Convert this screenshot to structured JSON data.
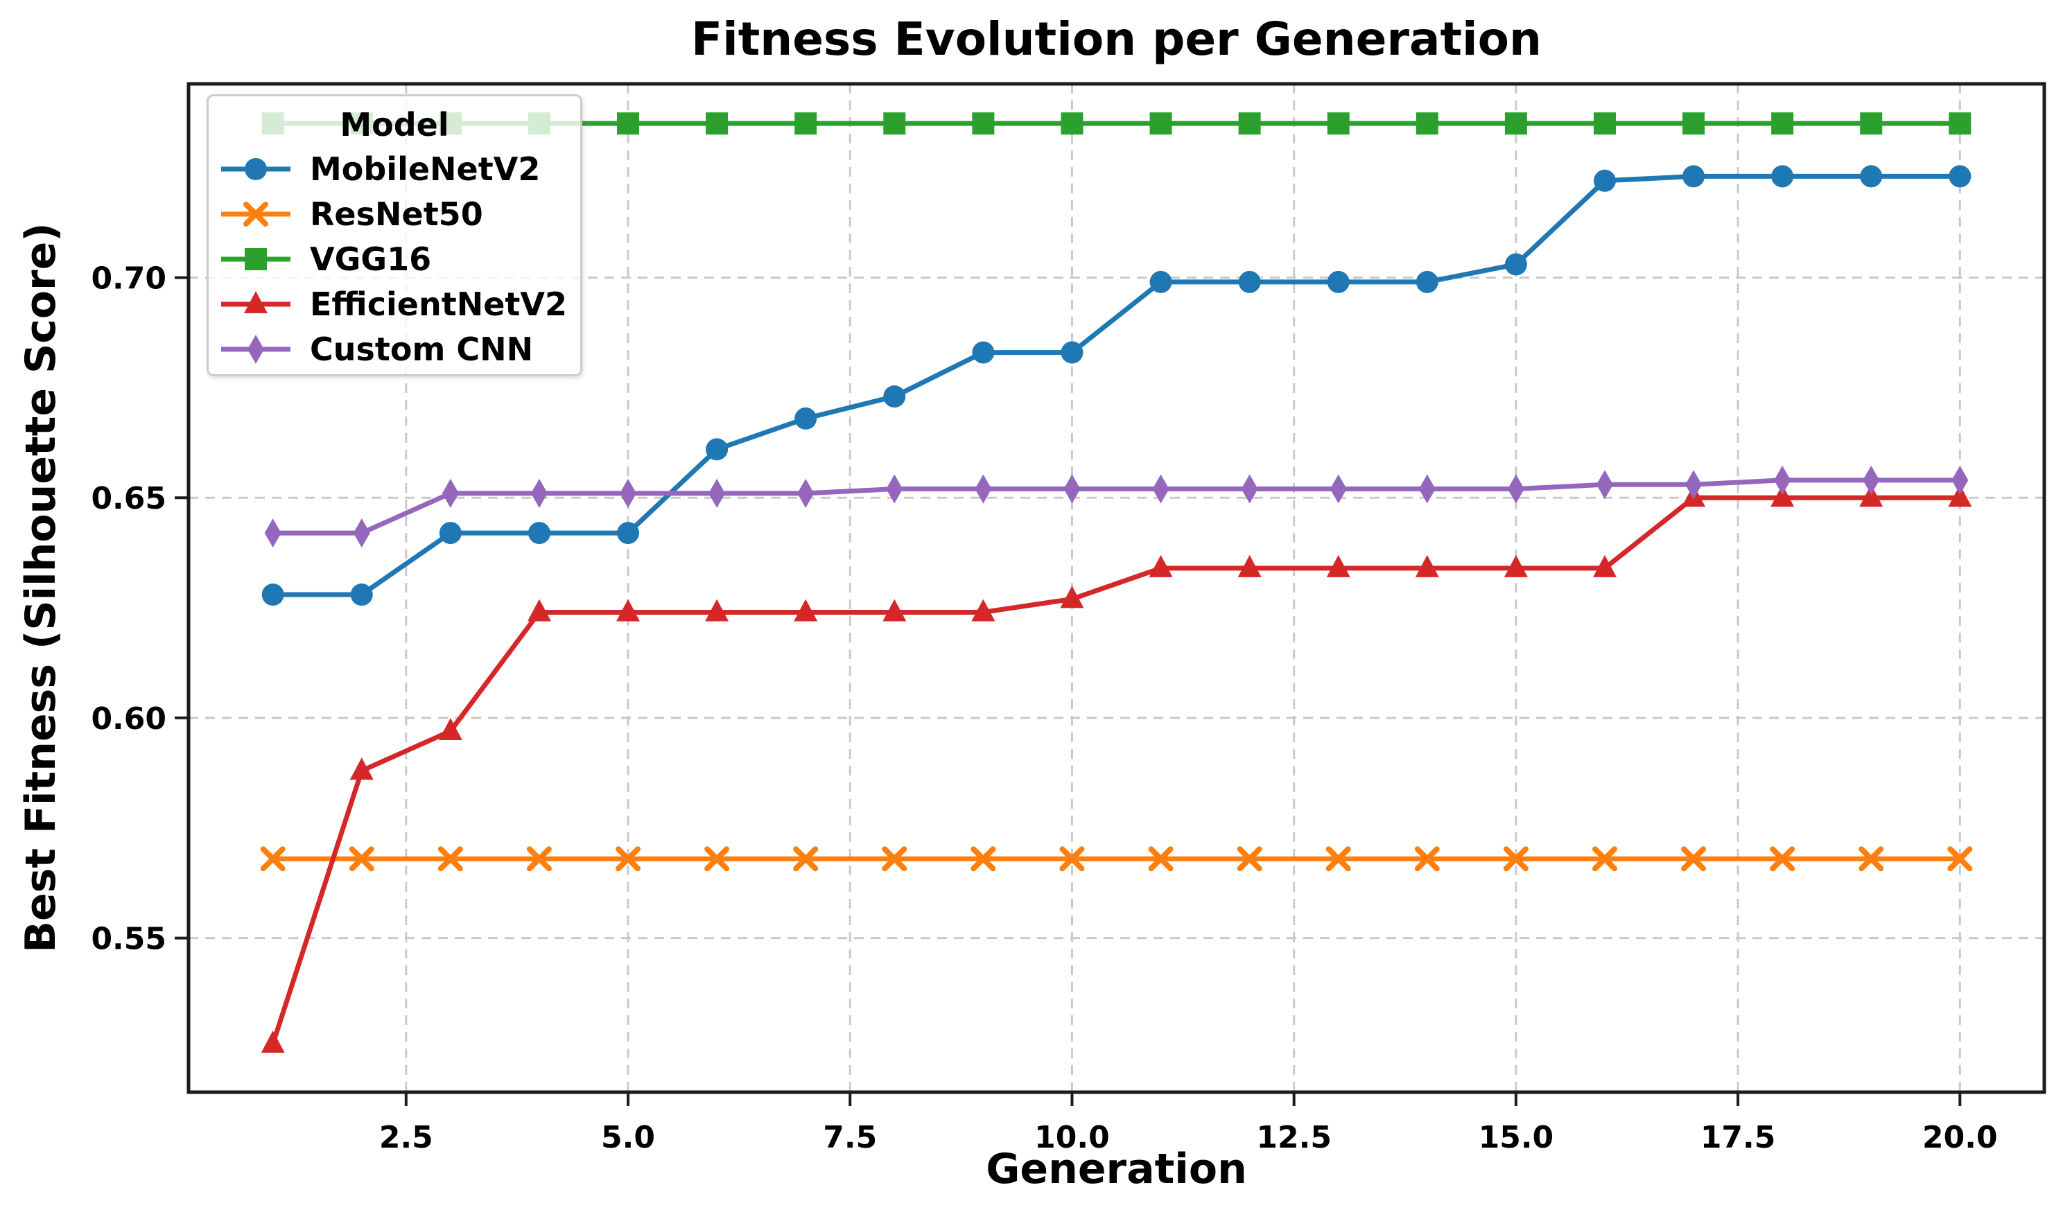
{
  "figure": {
    "title": "Fitness Evolution per Generation",
    "xlabel": "Generation",
    "ylabel": "Best Fitness (Silhouette Score)"
  },
  "legend": {
    "title": "Model",
    "position": "upper left"
  },
  "chart_data": {
    "type": "line",
    "title": "Fitness Evolution per Generation",
    "xlabel": "Generation",
    "ylabel": "Best Fitness (Silhouette Score)",
    "x": [
      1,
      2,
      3,
      4,
      5,
      6,
      7,
      8,
      9,
      10,
      11,
      12,
      13,
      14,
      15,
      16,
      17,
      18,
      19,
      20
    ],
    "series": [
      {
        "name": "MobileNetV2",
        "color": "#1f77b4",
        "marker": "circle",
        "values": [
          0.628,
          0.628,
          0.642,
          0.642,
          0.642,
          0.661,
          0.668,
          0.673,
          0.683,
          0.683,
          0.699,
          0.699,
          0.699,
          0.699,
          0.703,
          0.722,
          0.723,
          0.723,
          0.723,
          0.723
        ]
      },
      {
        "name": "ResNet50",
        "color": "#ff7f0e",
        "marker": "x",
        "values": [
          0.568,
          0.568,
          0.568,
          0.568,
          0.568,
          0.568,
          0.568,
          0.568,
          0.568,
          0.568,
          0.568,
          0.568,
          0.568,
          0.568,
          0.568,
          0.568,
          0.568,
          0.568,
          0.568,
          0.568
        ]
      },
      {
        "name": "VGG16",
        "color": "#2ca02c",
        "marker": "square",
        "values": [
          0.735,
          0.735,
          0.735,
          0.735,
          0.735,
          0.735,
          0.735,
          0.735,
          0.735,
          0.735,
          0.735,
          0.735,
          0.735,
          0.735,
          0.735,
          0.735,
          0.735,
          0.735,
          0.735,
          0.735
        ]
      },
      {
        "name": "EfficientNetV2",
        "color": "#d62728",
        "marker": "triangle",
        "values": [
          0.526,
          0.588,
          0.597,
          0.624,
          0.624,
          0.624,
          0.624,
          0.624,
          0.624,
          0.627,
          0.634,
          0.634,
          0.634,
          0.634,
          0.634,
          0.634,
          0.65,
          0.65,
          0.65,
          0.65
        ]
      },
      {
        "name": "Custom CNN",
        "color": "#9467bd",
        "marker": "thin-diamond",
        "values": [
          0.642,
          0.642,
          0.651,
          0.651,
          0.651,
          0.651,
          0.651,
          0.652,
          0.652,
          0.652,
          0.652,
          0.652,
          0.652,
          0.652,
          0.652,
          0.653,
          0.653,
          0.654,
          0.654,
          0.654
        ]
      }
    ],
    "x_ticks": [
      2.5,
      5.0,
      7.5,
      10.0,
      12.5,
      15.0,
      17.5,
      20.0
    ],
    "x_tick_labels": [
      "2.5",
      "5.0",
      "7.5",
      "10.0",
      "12.5",
      "15.0",
      "17.5",
      "20.0"
    ],
    "y_ticks": [
      0.55,
      0.6,
      0.65,
      0.7
    ],
    "y_tick_labels": [
      "0.55",
      "0.60",
      "0.65",
      "0.70"
    ],
    "xlim": [
      0.05,
      20.95
    ],
    "ylim": [
      0.515,
      0.744
    ],
    "grid": true,
    "grid_color": "#c9c9c9",
    "spine_color": "#1c1c1c",
    "text_color": "#000000",
    "legend_title": "Model",
    "legend_position": "upper left"
  }
}
